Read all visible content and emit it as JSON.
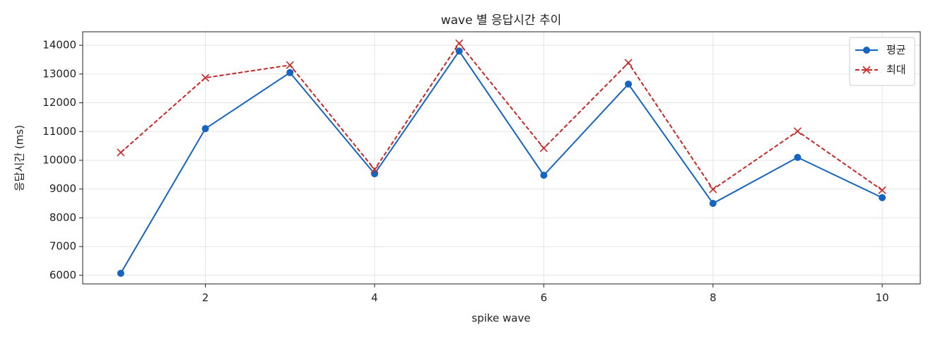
{
  "chart_data": {
    "type": "line",
    "title": "wave 별 응답시간 추이",
    "x_label": "spike wave",
    "y_label": "응답시간 (ms)",
    "x": [
      1,
      2,
      3,
      4,
      5,
      6,
      7,
      8,
      9,
      10
    ],
    "series": [
      {
        "name": "평균",
        "color": "#1565c0",
        "marker": "o",
        "linestyle": "solid",
        "values": [
          6070,
          11100,
          13050,
          9530,
          13800,
          9480,
          12650,
          8500,
          10100,
          8700
        ]
      },
      {
        "name": "최대",
        "color": "#c62828",
        "marker": "x",
        "linestyle": "dashed",
        "values": [
          10270,
          12870,
          13310,
          9680,
          14070,
          10420,
          13390,
          8990,
          11010,
          8960
        ]
      }
    ],
    "xlim": [
      0.55,
      10.45
    ],
    "xticks": [
      2,
      4,
      6,
      8,
      10
    ],
    "ylim": [
      5700,
      14470
    ],
    "yticks": [
      6000,
      7000,
      8000,
      9000,
      10000,
      11000,
      12000,
      13000,
      14000
    ],
    "grid": true,
    "legend": "upper right"
  }
}
